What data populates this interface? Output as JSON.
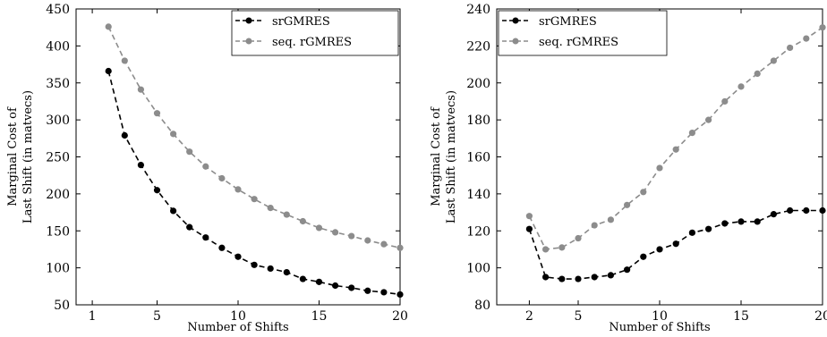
{
  "colors": {
    "series_1": "#000000",
    "series_2": "#8c8c8c",
    "axes": "#000000",
    "background": "#ffffff"
  },
  "chart_data": [
    {
      "type": "line",
      "xlabel": "Number of Shifts",
      "ylabel_line1": "Marginal Cost of",
      "ylabel_line2": "Last Shift (in matvecs)",
      "xlim": [
        0,
        20
      ],
      "ylim": [
        50,
        450
      ],
      "xticks": [
        1,
        5,
        10,
        15,
        20
      ],
      "yticks": [
        50,
        100,
        150,
        200,
        250,
        300,
        350,
        400,
        450
      ],
      "grid": false,
      "legend_position": "top-right",
      "series": [
        {
          "name": "srGMRES",
          "line_style": "dashed",
          "marker": "circle",
          "color": "#000000",
          "x": [
            2,
            3,
            4,
            5,
            6,
            7,
            8,
            9,
            10,
            11,
            12,
            13,
            14,
            15,
            16,
            17,
            18,
            19,
            20
          ],
          "y": [
            366,
            279,
            239,
            205,
            177,
            155,
            141,
            127,
            115,
            104,
            99,
            94,
            85,
            81,
            76,
            73,
            69,
            67,
            64
          ]
        },
        {
          "name": "seq. rGMRES",
          "line_style": "dashed",
          "marker": "circle",
          "color": "#8c8c8c",
          "x": [
            2,
            3,
            4,
            5,
            6,
            7,
            8,
            9,
            10,
            11,
            12,
            13,
            14,
            15,
            16,
            17,
            18,
            19,
            20
          ],
          "y": [
            426,
            380,
            341,
            309,
            281,
            257,
            237,
            221,
            206,
            193,
            181,
            172,
            163,
            154,
            148,
            143,
            137,
            132,
            127
          ]
        }
      ]
    },
    {
      "type": "line",
      "xlabel": "Number of Shifts",
      "ylabel_line1": "Marginal Cost of",
      "ylabel_line2": "Last Shift (in matvecs)",
      "xlim": [
        0,
        20
      ],
      "ylim": [
        80,
        240
      ],
      "xticks": [
        2,
        5,
        10,
        15,
        20
      ],
      "yticks": [
        80,
        100,
        120,
        140,
        160,
        180,
        200,
        220,
        240
      ],
      "grid": false,
      "legend_position": "top-left",
      "series": [
        {
          "name": "srGMRES",
          "line_style": "dashed",
          "marker": "circle",
          "color": "#000000",
          "x": [
            2,
            3,
            4,
            5,
            6,
            7,
            8,
            9,
            10,
            11,
            12,
            13,
            14,
            15,
            16,
            17,
            18,
            19,
            20
          ],
          "y": [
            121,
            95,
            94,
            94,
            95,
            96,
            99,
            106,
            110,
            113,
            119,
            121,
            124,
            125,
            125,
            129,
            131,
            131,
            131
          ]
        },
        {
          "name": "seq. rGMRES",
          "line_style": "dashed",
          "marker": "circle",
          "color": "#8c8c8c",
          "x": [
            2,
            3,
            4,
            5,
            6,
            7,
            8,
            9,
            10,
            11,
            12,
            13,
            14,
            15,
            16,
            17,
            18,
            19,
            20
          ],
          "y": [
            128,
            110,
            111,
            116,
            123,
            126,
            134,
            141,
            154,
            164,
            173,
            180,
            190,
            198,
            205,
            212,
            219,
            224,
            230
          ]
        }
      ]
    }
  ]
}
